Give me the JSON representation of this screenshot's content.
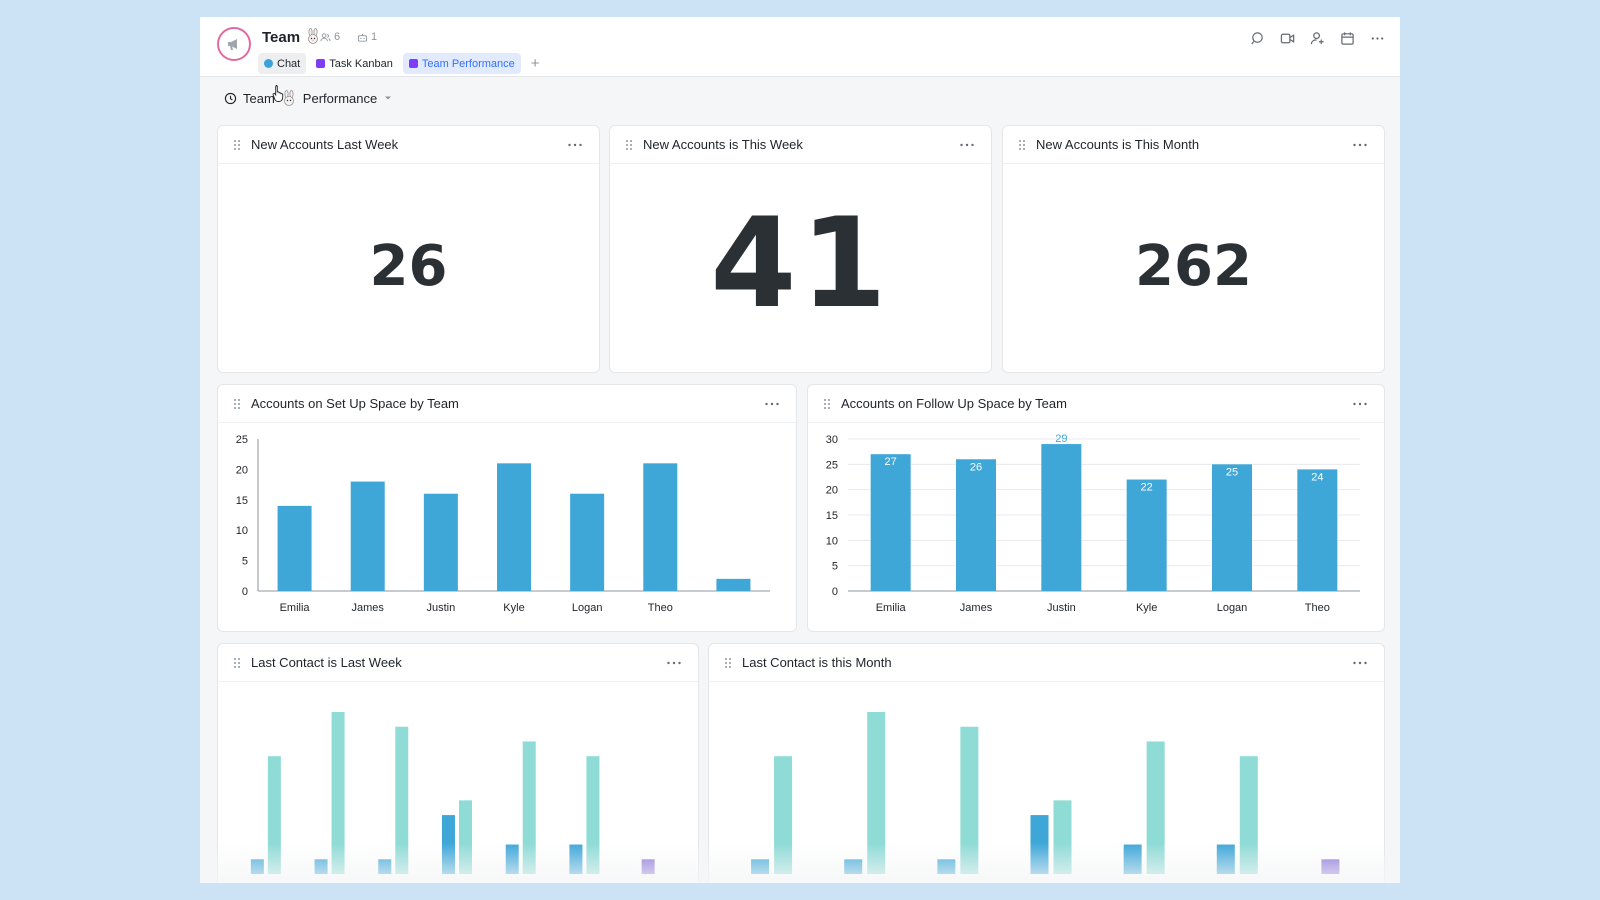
{
  "header": {
    "title": "Team",
    "members_count": "6",
    "bots_count": "1",
    "tabs": [
      {
        "label": "Chat",
        "color": "#3ba1db"
      },
      {
        "label": "Task Kanban",
        "color": "#7f3bf5"
      },
      {
        "label": "Team Performance",
        "color": "#7f3bf5"
      }
    ],
    "add_tab": "+",
    "actions": [
      "search-icon",
      "video-icon",
      "add-member-icon",
      "calendar-icon",
      "more-icon"
    ]
  },
  "dashboard": {
    "title_start": "Team",
    "title_end": "Performance"
  },
  "cards": {
    "new_last_week": {
      "title": "New Accounts Last Week",
      "value": "26"
    },
    "new_this_week": {
      "title": "New Accounts is This Week",
      "value": "41"
    },
    "new_this_month": {
      "title": "New Accounts is This Month",
      "value": "262"
    },
    "setup_space": {
      "title": "Accounts on Set Up Space by Team"
    },
    "followup_space": {
      "title": "Accounts on Follow Up Space by Team"
    },
    "contact_last_week": {
      "title": "Last Contact is Last Week"
    },
    "contact_this_month": {
      "title": "Last Contact is this Month"
    }
  },
  "chart_data": [
    {
      "id": "setup",
      "type": "bar",
      "categories": [
        "Emilia",
        "James",
        "Justin",
        "Kyle",
        "Logan",
        "Theo",
        ""
      ],
      "values": [
        14,
        18,
        16,
        21,
        16,
        21,
        2
      ],
      "ylim": [
        0,
        25
      ],
      "yticks": [
        0,
        5,
        10,
        15,
        20,
        25
      ],
      "color": "#3ea7d8",
      "grid": false,
      "data_labels": false
    },
    {
      "id": "followup",
      "type": "bar",
      "categories": [
        "Emilia",
        "James",
        "Justin",
        "Kyle",
        "Logan",
        "Theo"
      ],
      "values": [
        27,
        26,
        29,
        22,
        25,
        24
      ],
      "value_labels": [
        "27",
        "26",
        "29",
        "22",
        "25",
        "24"
      ],
      "ylim": [
        0,
        30
      ],
      "yticks": [
        0,
        5,
        10,
        15,
        20,
        25,
        30
      ],
      "color": "#3ea7d8",
      "grid": true,
      "data_labels": true
    },
    {
      "id": "lastweek",
      "type": "bar",
      "groups": 7,
      "series": [
        {
          "values": [
            1,
            1,
            1,
            4,
            2,
            2,
            0
          ],
          "color": "#3ea7d8"
        },
        {
          "values": [
            8,
            11,
            10,
            5,
            9,
            8,
            0
          ],
          "color": "#8fdbd6"
        },
        {
          "values": [
            0,
            0,
            0,
            0,
            0,
            0,
            1
          ],
          "color": "#8a72d8"
        }
      ],
      "ylim": [
        0,
        11
      ]
    },
    {
      "id": "thismonth",
      "type": "bar",
      "groups": 7,
      "series": [
        {
          "values": [
            1,
            1,
            1,
            4,
            2,
            2,
            0
          ],
          "color": "#3ea7d8"
        },
        {
          "values": [
            8,
            11,
            10,
            5,
            9,
            8,
            0
          ],
          "color": "#8fdbd6"
        },
        {
          "values": [
            0,
            0,
            0,
            0,
            0,
            0,
            1
          ],
          "color": "#8a72d8"
        }
      ],
      "ylim": [
        0,
        11
      ]
    }
  ]
}
